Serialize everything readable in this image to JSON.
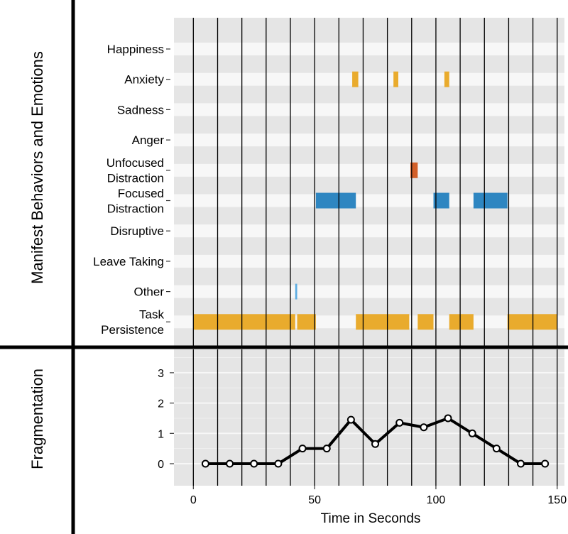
{
  "chart_data": [
    {
      "type": "timeline",
      "ylabel": "Manifest Behaviors and Emotions",
      "categories": [
        {
          "key": "happiness",
          "lines": [
            "Happiness"
          ]
        },
        {
          "key": "anxiety",
          "lines": [
            "Anxiety"
          ]
        },
        {
          "key": "sadness",
          "lines": [
            "Sadness"
          ]
        },
        {
          "key": "anger",
          "lines": [
            "Anger"
          ]
        },
        {
          "key": "unfocused_distraction",
          "lines": [
            "Unfocused",
            "Distraction"
          ]
        },
        {
          "key": "focused_distraction",
          "lines": [
            "Focused",
            "Distraction"
          ]
        },
        {
          "key": "disruptive",
          "lines": [
            "Disruptive"
          ]
        },
        {
          "key": "leave_taking",
          "lines": [
            "Leave Taking"
          ]
        },
        {
          "key": "other",
          "lines": [
            "Other"
          ]
        },
        {
          "key": "task_persistence",
          "lines": [
            "Task",
            "Persistence"
          ]
        }
      ],
      "segments": [
        {
          "category": "anxiety",
          "start": 65.5,
          "end": 68,
          "color": "#E9AB2D"
        },
        {
          "category": "anxiety",
          "start": 82.5,
          "end": 84.5,
          "color": "#E9AB2D"
        },
        {
          "category": "anxiety",
          "start": 103.5,
          "end": 105.5,
          "color": "#E9AB2D"
        },
        {
          "category": "unfocused_distraction",
          "start": 89.5,
          "end": 92.5,
          "color": "#D35F28"
        },
        {
          "category": "focused_distraction",
          "start": 50.5,
          "end": 67,
          "color": "#2E86C1"
        },
        {
          "category": "focused_distraction",
          "start": 99,
          "end": 105.5,
          "color": "#2E86C1"
        },
        {
          "category": "focused_distraction",
          "start": 115.5,
          "end": 129.5,
          "color": "#2E86C1"
        },
        {
          "category": "other",
          "start": 42,
          "end": 42.8,
          "color": "#5DADE2"
        },
        {
          "category": "task_persistence",
          "start": 0,
          "end": 42,
          "color": "#E9AB2D"
        },
        {
          "category": "task_persistence",
          "start": 42.8,
          "end": 50.5,
          "color": "#E9AB2D"
        },
        {
          "category": "task_persistence",
          "start": 67,
          "end": 89,
          "color": "#E9AB2D"
        },
        {
          "category": "task_persistence",
          "start": 92.5,
          "end": 99,
          "color": "#E9AB2D"
        },
        {
          "category": "task_persistence",
          "start": 105.5,
          "end": 115.5,
          "color": "#E9AB2D"
        },
        {
          "category": "task_persistence",
          "start": 129.5,
          "end": 150,
          "color": "#E9AB2D"
        }
      ],
      "vertical_lines": [
        0,
        10,
        20,
        30,
        40,
        50,
        60,
        70,
        80,
        90,
        100,
        110,
        120,
        130,
        140,
        150
      ],
      "xlim": [
        -8,
        153
      ]
    },
    {
      "type": "line",
      "ylabel": "Fragmentation",
      "xlabel": "Time in Seconds",
      "x": [
        5,
        15,
        25,
        35,
        45,
        55,
        65,
        75,
        85,
        95,
        105,
        115,
        125,
        135,
        145
      ],
      "y": [
        0,
        0,
        0,
        0,
        0.5,
        0.5,
        1.45,
        0.65,
        1.35,
        1.2,
        1.5,
        1.0,
        0.5,
        0,
        0
      ],
      "xticks": [
        "0",
        "50",
        "100",
        "150"
      ],
      "yticks": [
        "0",
        "1",
        "2",
        "3"
      ],
      "ylim": [
        -0.65,
        3.6
      ],
      "xlim": [
        -8,
        153
      ],
      "vertical_lines": [
        0,
        10,
        20,
        30,
        40,
        50,
        60,
        70,
        80,
        90,
        100,
        110,
        120,
        130,
        140,
        150
      ]
    }
  ]
}
